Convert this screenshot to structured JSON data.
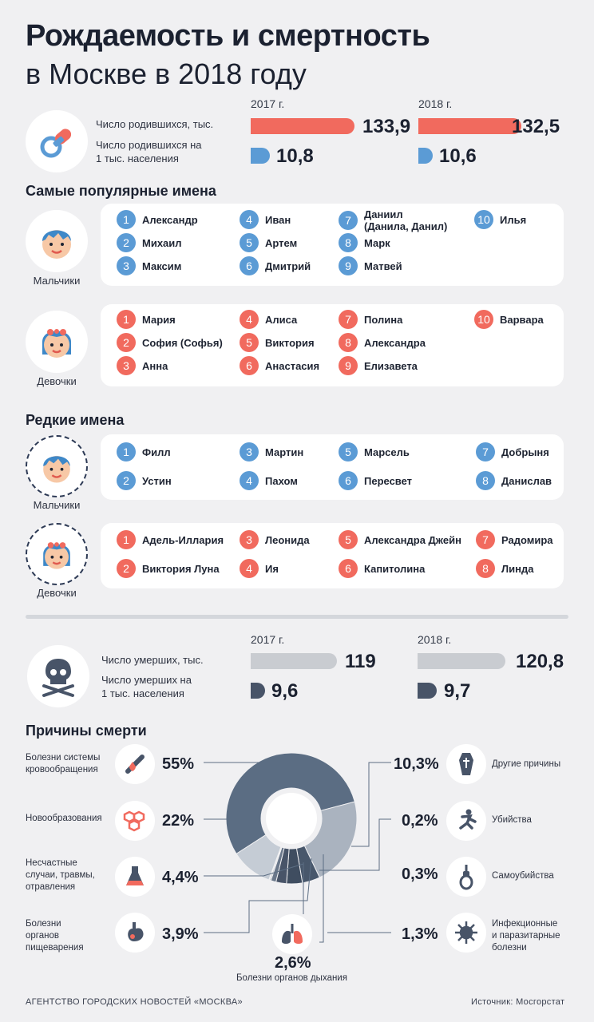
{
  "title": {
    "line1": "Рождаемость и смертность",
    "line2": "в Москве в 2018 году"
  },
  "births": {
    "label_total": "Число родившихся, тыс.",
    "label_per1000_l1": "Число родившихся на",
    "label_per1000_l2": "1 тыс. населения",
    "y2017": "2017 г.",
    "y2018": "2018 г.",
    "total2017": "133,9",
    "total2018": "132,5",
    "rate2017": "10,8",
    "rate2018": "10,6",
    "color": "#f16a5e",
    "rate_color": "#5b9bd5"
  },
  "popular": {
    "heading": "Самые популярные имена",
    "boys_label": "Мальчики",
    "girls_label": "Девочки",
    "boys": [
      "Александр",
      "Михаил",
      "Максим",
      "Иван",
      "Артем",
      "Дмитрий",
      "Даниил",
      "(Данила, Данил)",
      "Марк",
      "Матвей",
      "Илья"
    ],
    "girls": [
      "Мария",
      "София (Софья)",
      "Анна",
      "Алиса",
      "Виктория",
      "Анастасия",
      "Полина",
      "Александра",
      "Елизавета",
      "Варвара"
    ]
  },
  "rare": {
    "heading": "Редкие имена",
    "boys_label": "Мальчики",
    "girls_label": "Девочки",
    "boys": [
      "Филл",
      "Устин",
      "Мартин",
      "Пахом",
      "Марсель",
      "Пересвет",
      "Добрыня",
      "Данислав"
    ],
    "girls": [
      "Адель-Иллария",
      "Виктория Луна",
      "Леонида",
      "Ия",
      "Александра Джейн",
      "Капитолина",
      "Радомира",
      "Линда"
    ]
  },
  "numbers": [
    "1",
    "2",
    "3",
    "4",
    "5",
    "6",
    "7",
    "8",
    "9",
    "10"
  ],
  "deaths": {
    "label_total": "Число умерших, тыс.",
    "label_per1000_l1": "Число умерших на",
    "label_per1000_l2": "1 тыс. населения",
    "y2017": "2017 г.",
    "y2018": "2018 г.",
    "total2017": "119",
    "total2018": "120,8",
    "rate2017": "9,6",
    "rate2018": "9,7",
    "color": "#c9ccd1",
    "rate_color": "#485468"
  },
  "causes_heading": "Причины смерти",
  "causes": {
    "circ_l1": "Болезни системы",
    "circ_l2": "кровообращения",
    "circ_pct": "55%",
    "neo": "Новообразования",
    "neo_pct": "22%",
    "acc_l1": "Несчастные",
    "acc_l2": "случаи, травмы,",
    "acc_l3": "отравления",
    "acc_pct": "4,4%",
    "dig_l1": "Болезни",
    "dig_l2": "органов",
    "dig_l3": "пищеварения",
    "dig_pct": "3,9%",
    "resp_pct": "2,6%",
    "resp": "Болезни органов дыхания",
    "other": "Другие причины",
    "other_pct": "10,3%",
    "murder": "Убийства",
    "murder_pct": "0,2%",
    "suicide": "Самоубийства",
    "suicide_pct": "0,3%",
    "inf_l1": "Инфекционные",
    "inf_l2": "и паразитарные",
    "inf_l3": "болезни",
    "inf_pct": "1,3%"
  },
  "chart_data": [
    {
      "type": "bar",
      "title": "Число родившихся, тыс.",
      "categories": [
        "2017 г.",
        "2018 г."
      ],
      "values": [
        133.9,
        132.5
      ]
    },
    {
      "type": "bar",
      "title": "Число родившихся на 1 тыс. населения",
      "categories": [
        "2017 г.",
        "2018 г."
      ],
      "values": [
        10.8,
        10.6
      ]
    },
    {
      "type": "bar",
      "title": "Число умерших, тыс.",
      "categories": [
        "2017 г.",
        "2018 г."
      ],
      "values": [
        119,
        120.8
      ]
    },
    {
      "type": "bar",
      "title": "Число умерших на 1 тыс. населения",
      "categories": [
        "2017 г.",
        "2018 г."
      ],
      "values": [
        9.6,
        9.7
      ]
    },
    {
      "type": "pie",
      "title": "Причины смерти",
      "categories": [
        "Болезни системы кровообращения",
        "Новообразования",
        "Несчастные случаи, травмы, отравления",
        "Болезни органов пищеварения",
        "Болезни органов дыхания",
        "Инфекционные и паразитарные болезни",
        "Самоубийства",
        "Убийства",
        "Другие причины"
      ],
      "values": [
        55,
        22,
        4.4,
        3.9,
        2.6,
        1.3,
        0.3,
        0.2,
        10.3
      ],
      "colors": [
        "#5b6d83",
        "#aab3bf",
        "#48576b",
        "#3f4d60",
        "#485468",
        "#6a778a",
        "#8d97a6",
        "#b4bcc7",
        "#c5ccd5"
      ]
    }
  ],
  "footer": {
    "left": "АГЕНТСТВО ГОРОДСКИХ НОВОСТЕЙ «МОСКВА»",
    "right": "Источник: Мосгорстат"
  }
}
